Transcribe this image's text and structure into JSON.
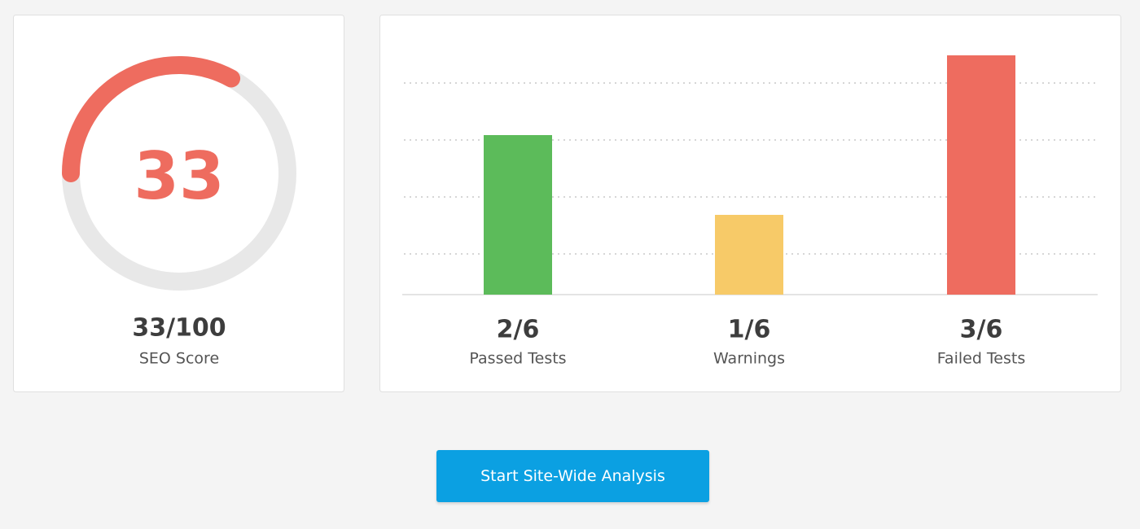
{
  "gauge": {
    "value": 33,
    "max": 100,
    "score_label": "33/100",
    "caption": "SEO Score",
    "color": "#ee6c5f",
    "track_color": "#e8e8e8"
  },
  "chart_data": {
    "type": "bar",
    "categories": [
      "Passed Tests",
      "Warnings",
      "Failed Tests"
    ],
    "values": [
      2,
      1,
      3
    ],
    "value_labels": [
      "2/6",
      "1/6",
      "3/6"
    ],
    "colors": [
      "#5cbb5a",
      "#f7ca68",
      "#ee6c5f"
    ]
  },
  "button": {
    "label": "Start Site-Wide Analysis"
  }
}
